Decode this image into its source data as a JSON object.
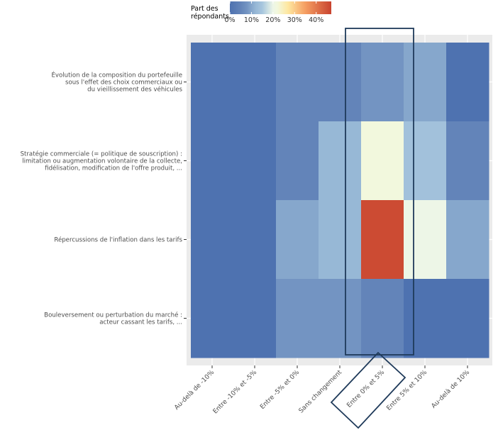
{
  "chart_data": {
    "type": "heatmap",
    "title": "",
    "xlabel": "",
    "ylabel": "",
    "legend": {
      "title_line1": "Part des",
      "title_line2": "répondants",
      "ticks": [
        "0%",
        "10%",
        "20%",
        "30%",
        "40%"
      ],
      "tick_values": [
        0,
        10,
        20,
        30,
        40
      ],
      "range": [
        0,
        47
      ],
      "placement": "top"
    },
    "x_categories": [
      "Au-delà de -10%",
      "Entre -10% et -5%",
      "Entre -5% et 0%",
      "Sans changement",
      "Entre 0% et 5%",
      "Entre 5% et 10%",
      "Au-delà de 10%"
    ],
    "y_categories": [
      [
        "Évolution de la composition du portefeuille",
        "sous l'effet des choix commerciaux ou",
        "du vieillissement des véhicules"
      ],
      [
        "Stratégie commerciale (= politique de souscription) :",
        "limitation ou augmentation volontaire de la collecte,",
        "fidélisation, modification de l'offre produit, ..."
      ],
      [
        "Répercussions de l'inflation dans les tarifs"
      ],
      [
        "Bouleversement ou perturbation du marché :",
        "acteur cassant les tarifs, ..."
      ]
    ],
    "values": [
      [
        0,
        0,
        5,
        5,
        8,
        10,
        0
      ],
      [
        0,
        0,
        5,
        12,
        22,
        14,
        5
      ],
      [
        0,
        0,
        10,
        12,
        46,
        20,
        10
      ],
      [
        0,
        0,
        8,
        8,
        5,
        0,
        0
      ]
    ],
    "unit": "%",
    "highlight_column": "Entre 0% et 5%",
    "colors": {
      "panel_bg": "#ebebeb",
      "grid": "#ffffff",
      "highlight": "#1f3a5a",
      "scale": [
        "#4e72b0",
        "#7394c2",
        "#a7c6de",
        "#f4f9dc",
        "#fee7a0",
        "#f59e62",
        "#c8432f"
      ]
    }
  }
}
